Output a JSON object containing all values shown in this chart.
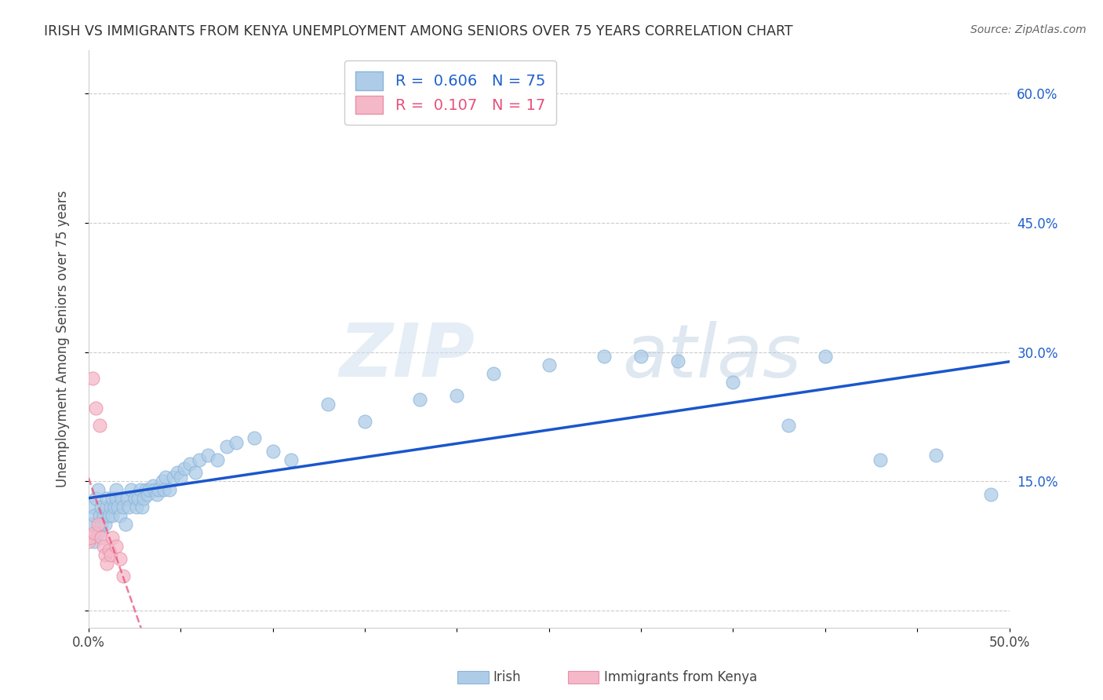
{
  "title": "IRISH VS IMMIGRANTS FROM KENYA UNEMPLOYMENT AMONG SENIORS OVER 75 YEARS CORRELATION CHART",
  "source": "Source: ZipAtlas.com",
  "ylabel": "Unemployment Among Seniors over 75 years",
  "xlim": [
    0.0,
    0.5
  ],
  "ylim": [
    -0.02,
    0.65
  ],
  "ytick_positions": [
    0.0,
    0.15,
    0.3,
    0.45,
    0.6
  ],
  "ytick_labels": [
    "",
    "15.0%",
    "30.0%",
    "45.0%",
    "60.0%"
  ],
  "irish_R": 0.606,
  "irish_N": 75,
  "kenya_R": 0.107,
  "kenya_N": 17,
  "irish_color": "#aecce8",
  "kenya_color": "#f5b8c8",
  "irish_line_color": "#1a56cc",
  "kenya_line_color": "#e8507a",
  "watermark_zip": "ZIP",
  "watermark_atlas": "atlas",
  "irish_x": [
    0.001,
    0.002,
    0.003,
    0.003,
    0.004,
    0.005,
    0.005,
    0.006,
    0.007,
    0.007,
    0.008,
    0.009,
    0.01,
    0.01,
    0.011,
    0.012,
    0.013,
    0.013,
    0.014,
    0.015,
    0.015,
    0.016,
    0.017,
    0.018,
    0.019,
    0.02,
    0.021,
    0.022,
    0.023,
    0.025,
    0.026,
    0.027,
    0.028,
    0.029,
    0.03,
    0.031,
    0.032,
    0.033,
    0.035,
    0.036,
    0.037,
    0.038,
    0.04,
    0.041,
    0.042,
    0.044,
    0.046,
    0.048,
    0.05,
    0.052,
    0.055,
    0.058,
    0.06,
    0.065,
    0.07,
    0.075,
    0.08,
    0.09,
    0.1,
    0.11,
    0.13,
    0.15,
    0.18,
    0.2,
    0.22,
    0.25,
    0.28,
    0.3,
    0.32,
    0.35,
    0.38,
    0.4,
    0.43,
    0.46,
    0.49
  ],
  "irish_y": [
    0.1,
    0.12,
    0.08,
    0.11,
    0.13,
    0.09,
    0.14,
    0.11,
    0.1,
    0.12,
    0.11,
    0.1,
    0.12,
    0.13,
    0.11,
    0.12,
    0.13,
    0.11,
    0.12,
    0.13,
    0.14,
    0.12,
    0.11,
    0.13,
    0.12,
    0.1,
    0.13,
    0.12,
    0.14,
    0.13,
    0.12,
    0.13,
    0.14,
    0.12,
    0.13,
    0.14,
    0.135,
    0.14,
    0.145,
    0.14,
    0.135,
    0.14,
    0.15,
    0.14,
    0.155,
    0.14,
    0.155,
    0.16,
    0.155,
    0.165,
    0.17,
    0.16,
    0.175,
    0.18,
    0.175,
    0.19,
    0.195,
    0.2,
    0.185,
    0.175,
    0.24,
    0.22,
    0.245,
    0.25,
    0.275,
    0.285,
    0.295,
    0.295,
    0.29,
    0.265,
    0.215,
    0.295,
    0.175,
    0.18,
    0.135
  ],
  "kenya_x": [
    0.0,
    0.001,
    0.002,
    0.003,
    0.004,
    0.005,
    0.006,
    0.007,
    0.008,
    0.009,
    0.01,
    0.011,
    0.012,
    0.013,
    0.015,
    0.017,
    0.019
  ],
  "kenya_y": [
    0.08,
    0.085,
    0.27,
    0.09,
    0.235,
    0.1,
    0.215,
    0.085,
    0.075,
    0.065,
    0.055,
    0.07,
    0.065,
    0.085,
    0.075,
    0.06,
    0.04
  ]
}
